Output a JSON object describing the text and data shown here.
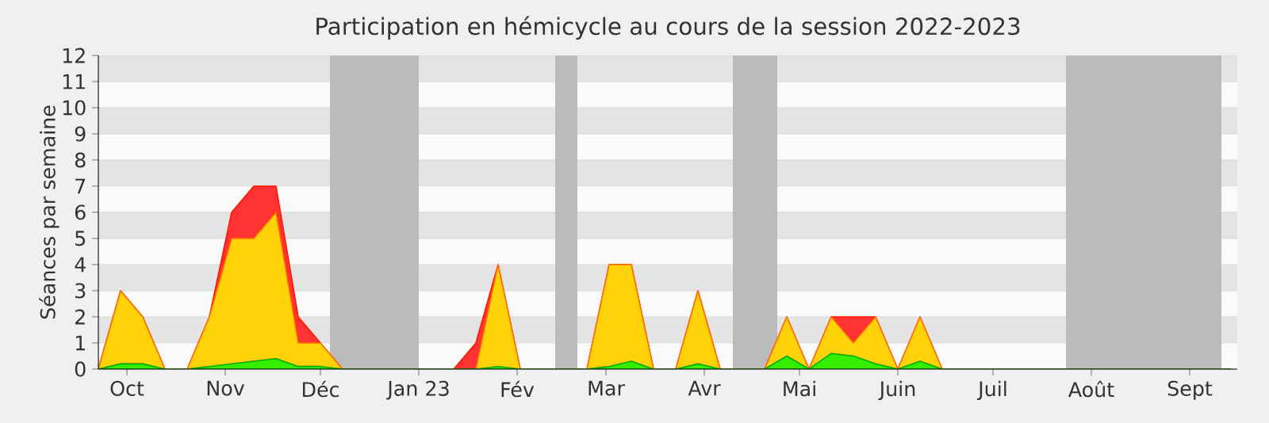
{
  "chart_data": {
    "type": "area",
    "stacked": true,
    "title": "Participation en hémicycle au cours de la session 2022-2023",
    "ylabel": "Séances par semaine",
    "x": [
      "2022-09-22",
      "2022-09-29",
      "2022-10-06",
      "2022-10-13",
      "2022-10-20",
      "2022-10-27",
      "2022-11-03",
      "2022-11-10",
      "2022-11-17",
      "2022-11-24",
      "2022-12-01",
      "2022-12-08",
      "2022-12-15",
      "2022-12-22",
      "2022-12-29",
      "2023-01-05",
      "2023-01-12",
      "2023-01-19",
      "2023-01-26",
      "2023-02-02",
      "2023-02-09",
      "2023-02-16",
      "2023-02-23",
      "2023-03-02",
      "2023-03-09",
      "2023-03-16",
      "2023-03-23",
      "2023-03-30",
      "2023-04-06",
      "2023-04-13",
      "2023-04-20",
      "2023-04-27",
      "2023-05-04",
      "2023-05-11",
      "2023-05-18",
      "2023-05-25",
      "2023-06-01",
      "2023-06-08",
      "2023-06-15",
      "2023-06-22",
      "2023-06-29",
      "2023-07-06",
      "2023-07-13",
      "2023-07-20",
      "2023-07-27",
      "2023-08-03",
      "2023-08-10",
      "2023-08-17",
      "2023-08-24",
      "2023-08-31",
      "2023-09-07",
      "2023-09-14"
    ],
    "series": [
      {
        "color": "#33ee00",
        "values": [
          0,
          0.2,
          0.2,
          0,
          0,
          0.1,
          0.2,
          0.3,
          0.4,
          0.1,
          0.1,
          0,
          0,
          0,
          0,
          0,
          0,
          0,
          0.1,
          0,
          0,
          0,
          0,
          0.1,
          0.3,
          0,
          0,
          0.2,
          0,
          0,
          0,
          0.5,
          0,
          0.6,
          0.5,
          0.2,
          0,
          0.3,
          0,
          0,
          0,
          0,
          0,
          0,
          0,
          0,
          0,
          0,
          0,
          0,
          0,
          0
        ]
      },
      {
        "color": "#ffd20a",
        "values": [
          0,
          2.8,
          1.8,
          0,
          0,
          1.9,
          4.8,
          4.7,
          5.6,
          0.9,
          0.9,
          0,
          0,
          0,
          0,
          0,
          0,
          0,
          3.9,
          0,
          0,
          0,
          0,
          3.9,
          3.7,
          0,
          0,
          2.8,
          0,
          0,
          0,
          1.5,
          0,
          1.4,
          0.5,
          1.8,
          0,
          1.7,
          0,
          0,
          0,
          0,
          0,
          0,
          0,
          0,
          0,
          0,
          0,
          0,
          0,
          0
        ]
      },
      {
        "color": "#ff3333",
        "values": [
          0,
          0,
          0,
          0,
          0,
          0,
          1,
          2,
          1,
          1,
          0,
          0,
          0,
          0,
          0,
          0,
          0,
          1,
          0,
          0,
          0,
          0,
          0,
          0,
          0,
          0,
          0,
          0,
          0,
          0,
          0,
          0,
          0,
          0,
          1,
          0,
          0,
          0,
          0,
          0,
          0,
          0,
          0,
          0,
          0,
          0,
          0,
          0,
          0,
          0,
          0,
          0
        ]
      }
    ],
    "xlim": [
      "2022-09-22",
      "2023-09-16"
    ],
    "ylim": [
      0,
      12
    ],
    "yticks": [
      0,
      1,
      2,
      3,
      4,
      5,
      6,
      7,
      8,
      9,
      10,
      11,
      12
    ],
    "xticks": [
      {
        "value": "2022-10-01",
        "label": "Oct"
      },
      {
        "value": "2022-11-01",
        "label": "Nov"
      },
      {
        "value": "2022-12-01",
        "label": "Déc"
      },
      {
        "value": "2023-01-01",
        "label": "Jan 23"
      },
      {
        "value": "2023-02-01",
        "label": "Fév"
      },
      {
        "value": "2023-03-01",
        "label": "Mar"
      },
      {
        "value": "2023-04-01",
        "label": "Avr"
      },
      {
        "value": "2023-05-01",
        "label": "Mai"
      },
      {
        "value": "2023-06-01",
        "label": "Juin"
      },
      {
        "value": "2023-07-01",
        "label": "Juil"
      },
      {
        "value": "2023-08-01",
        "label": "Août"
      },
      {
        "value": "2023-09-01",
        "label": "Sept"
      }
    ],
    "grid": "y",
    "bands": [
      {
        "axis": "x",
        "from": "2022-12-04",
        "to": "2023-01-01",
        "color": "#bbbbbb"
      },
      {
        "axis": "x",
        "from": "2023-02-13",
        "to": "2023-02-20",
        "color": "#bbbbbb"
      },
      {
        "axis": "x",
        "from": "2023-04-10",
        "to": "2023-04-24",
        "color": "#bbbbbb"
      },
      {
        "axis": "x",
        "from": "2023-07-24",
        "to": "2023-09-11",
        "color": "#bbbbbb"
      }
    ]
  }
}
